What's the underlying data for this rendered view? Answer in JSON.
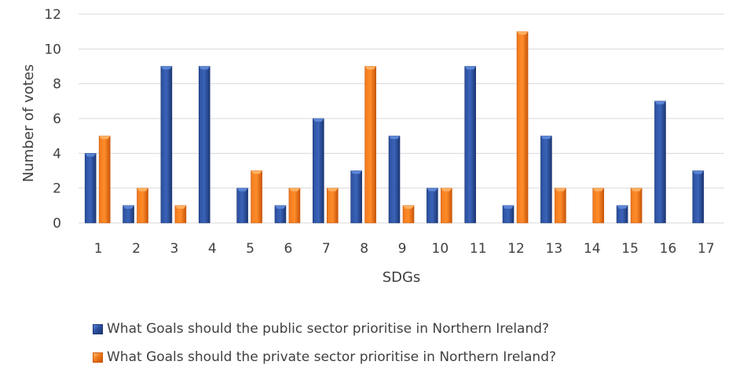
{
  "colors": {
    "public": "#1f3f8a",
    "public_light": "#5b86d6",
    "private": "#e0600c",
    "private_light": "#ffb060",
    "grid": "#d9d9d9",
    "text": "#404040"
  },
  "chart_data": {
    "type": "bar",
    "xlabel": "SDGs",
    "ylabel": "Number of votes",
    "ylim": [
      0,
      12
    ],
    "yticks": [
      "0",
      "2",
      "4",
      "6",
      "8",
      "10",
      "12"
    ],
    "grid": true,
    "legend_position": "bottom",
    "categories": [
      "1",
      "2",
      "3",
      "4",
      "5",
      "6",
      "7",
      "8",
      "9",
      "10",
      "11",
      "12",
      "13",
      "14",
      "15",
      "16",
      "17"
    ],
    "series": [
      {
        "name": "What Goals should the public sector prioritise in Northern Ireland?",
        "values": [
          4,
          1,
          9,
          9,
          2,
          1,
          6,
          3,
          5,
          2,
          9,
          1,
          5,
          0,
          1,
          7,
          3
        ]
      },
      {
        "name": "What Goals should the private sector prioritise in Northern Ireland?",
        "values": [
          5,
          2,
          1,
          0,
          3,
          2,
          2,
          9,
          1,
          2,
          0,
          11,
          2,
          2,
          2,
          0,
          0
        ]
      }
    ]
  }
}
